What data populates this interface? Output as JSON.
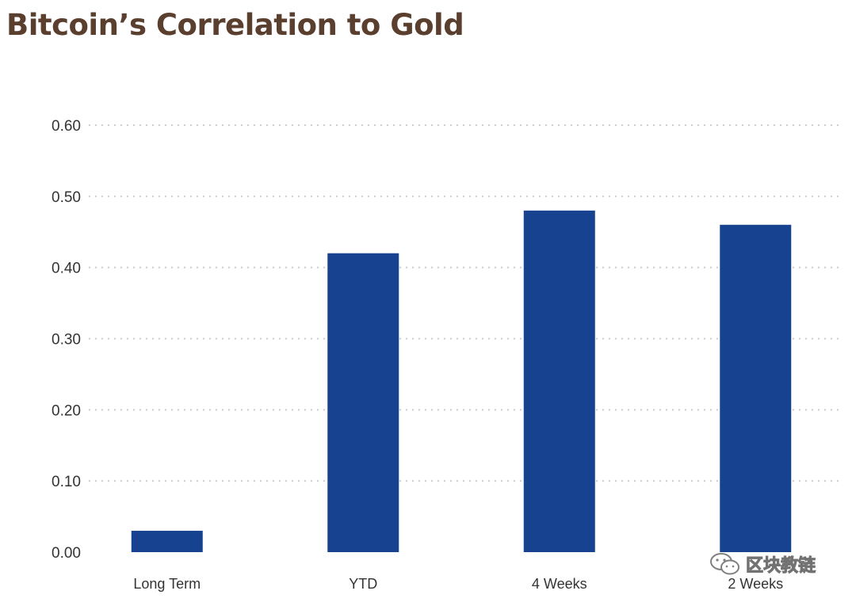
{
  "chart_data": {
    "type": "bar",
    "title": "Bitcoin’s Correlation to Gold",
    "categories": [
      "Long Term",
      "YTD",
      "4 Weeks",
      "2 Weeks"
    ],
    "values": [
      0.03,
      0.42,
      0.48,
      0.46
    ],
    "ylim": [
      0,
      0.6
    ],
    "yticks": [
      "0.00",
      "0.10",
      "0.20",
      "0.30",
      "0.40",
      "0.50",
      "0.60"
    ],
    "xlabel": "",
    "ylabel": "",
    "grid": true,
    "bar_color": "#17428f",
    "grid_color": "#cccccc"
  },
  "watermark": {
    "text": "区块教链",
    "icon": "wechat-icon"
  }
}
